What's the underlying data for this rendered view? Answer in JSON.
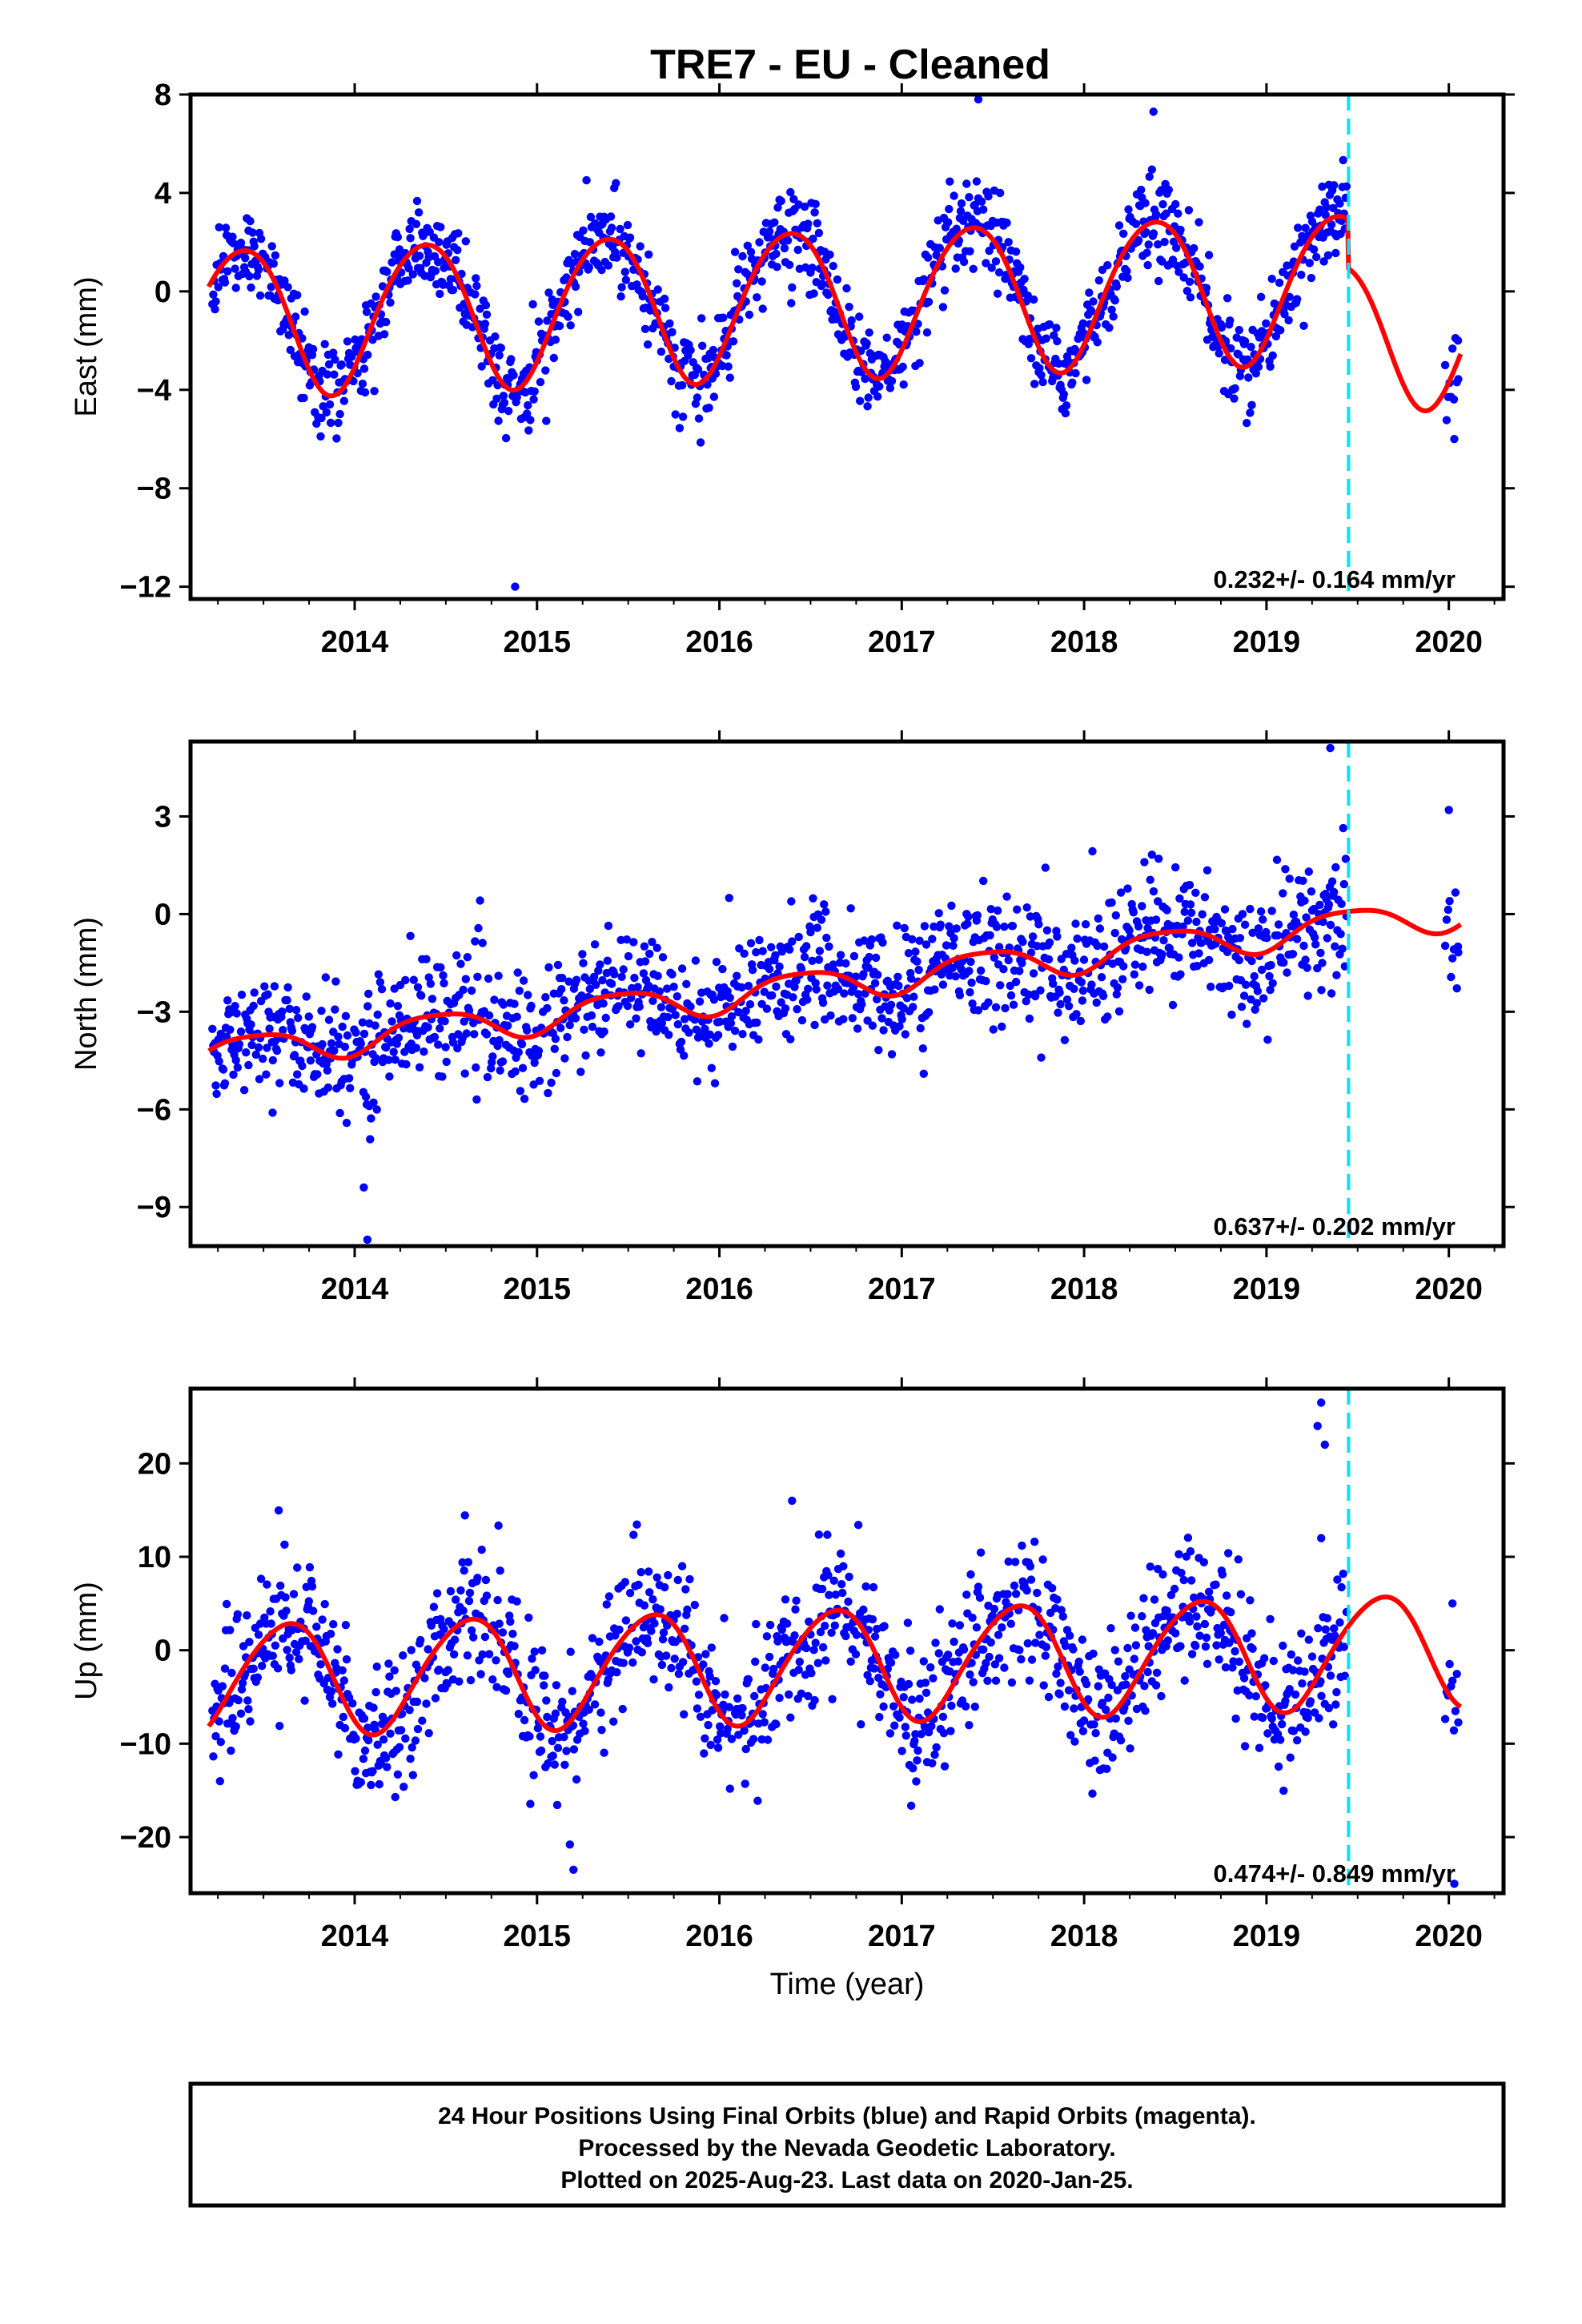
{
  "title": "TRE7  - EU - Cleaned",
  "colors": {
    "final_orbits": "#0000ff",
    "model_fit": "#ff0000",
    "data_end_marker": "#00e5ff",
    "frame": "#000000"
  },
  "chart_data": [
    {
      "type": "scatter",
      "panel": "east",
      "ylabel": "East (mm)",
      "xlabel": "",
      "xlim": [
        2013.1,
        2020.3
      ],
      "ylim": [
        -12.5,
        8
      ],
      "xticks": [
        2014,
        2015,
        2016,
        2017,
        2018,
        2019,
        2020
      ],
      "xtick_labels": [
        "2014",
        "2015",
        "2016",
        "2017",
        "2018",
        "2019",
        "2020"
      ],
      "yticks": [
        -12,
        -8,
        -4,
        0,
        4,
        8
      ],
      "ytick_labels": [
        "−12",
        "−8",
        "−4",
        "0",
        "4",
        "8"
      ],
      "rate_text": "0.232+/- 0.164 mm/yr",
      "data_end_marker_x": 2019.45,
      "model": {
        "trend_mm_per_yr": 0.232,
        "offset_mm": -0.4,
        "annual_amp_mm": 3.0,
        "annual_peak_year_fraction": 0.38,
        "semiannual_amp_mm": 0.25,
        "semiannual_peak_year_fraction": 0.1,
        "break_at": 2019.45,
        "offset_after_break_mm": -2.0
      },
      "scatter": {
        "noise_sd_mm": 0.9,
        "gap_start": 2019.45,
        "gap_end": 2019.98,
        "outliers": [
          [
            2014.88,
            -12.0
          ],
          [
            2017.42,
            7.8
          ],
          [
            2018.38,
            7.3
          ],
          [
            2020.03,
            -6.0
          ],
          [
            2020.05,
            -2.0
          ]
        ]
      }
    },
    {
      "type": "scatter",
      "panel": "north",
      "ylabel": "North (mm)",
      "xlabel": "",
      "xlim": [
        2013.1,
        2020.3
      ],
      "ylim": [
        -10.2,
        5.3
      ],
      "xticks": [
        2014,
        2015,
        2016,
        2017,
        2018,
        2019,
        2020
      ],
      "xtick_labels": [
        "2014",
        "2015",
        "2016",
        "2017",
        "2018",
        "2019",
        "2020"
      ],
      "yticks": [
        -9,
        -6,
        -3,
        0,
        3
      ],
      "ytick_labels": [
        "−9",
        "−6",
        "−3",
        "0",
        "3"
      ],
      "rate_text": "0.637+/- 0.202 mm/yr",
      "data_end_marker_x": 2019.45,
      "model": {
        "trend_mm_per_yr": 0.637,
        "offset_mm": -2.2,
        "annual_amp_mm": 0.5,
        "annual_peak_year_fraction": 0.45,
        "semiannual_amp_mm": 0.1,
        "semiannual_peak_year_fraction": 0.2,
        "break_at": 2019.45,
        "offset_after_break_mm": 0.0
      },
      "scatter": {
        "noise_sd_mm": 0.95,
        "gap_start": 2019.45,
        "gap_end": 2019.98,
        "outliers": [
          [
            2013.55,
            -6.1
          ],
          [
            2014.05,
            -8.4
          ],
          [
            2014.07,
            -10.0
          ],
          [
            2014.08,
            -5.9
          ],
          [
            2017.6,
            -2.5
          ],
          [
            2019.35,
            5.1
          ],
          [
            2020.05,
            -1.0
          ],
          [
            2020.0,
            3.2
          ]
        ]
      }
    },
    {
      "type": "scatter",
      "panel": "up",
      "ylabel": "Up (mm)",
      "xlabel": "Time (year)",
      "xlim": [
        2013.1,
        2020.3
      ],
      "ylim": [
        -26,
        28
      ],
      "xticks": [
        2014,
        2015,
        2016,
        2017,
        2018,
        2019,
        2020
      ],
      "xtick_labels": [
        "2014",
        "2015",
        "2016",
        "2017",
        "2018",
        "2019",
        "2020"
      ],
      "yticks": [
        -20,
        -10,
        0,
        10,
        20
      ],
      "ytick_labels": [
        "−20",
        "−10",
        "0",
        "10",
        "20"
      ],
      "rate_text": "0.474+/- 0.849 mm/yr",
      "data_end_marker_x": 2019.45,
      "model": {
        "trend_mm_per_yr": 0.474,
        "offset_mm": -1.5,
        "annual_amp_mm": 6.0,
        "annual_peak_year_fraction": 0.62,
        "semiannual_amp_mm": 0.6,
        "semiannual_peak_year_fraction": 0.3,
        "break_at": 2019.45,
        "offset_after_break_mm": 0.0
      },
      "scatter": {
        "noise_sd_mm": 3.8,
        "gap_start": 2019.45,
        "gap_end": 2019.98,
        "outliers": [
          [
            2015.2,
            -23.5
          ],
          [
            2015.18,
            -20.8
          ],
          [
            2019.3,
            26.5
          ],
          [
            2019.28,
            24.0
          ],
          [
            2019.32,
            22.0
          ],
          [
            2019.3,
            12.0
          ],
          [
            2020.03,
            -25.0
          ],
          [
            2020.02,
            5.0
          ]
        ]
      }
    }
  ],
  "footer": {
    "line1": "24 Hour Positions Using Final Orbits (blue) and Rapid Orbits (magenta).",
    "line2": "Processed by the Nevada Geodetic Laboratory.",
    "line3": "Plotted on 2025-Aug-23. Last data on 2020-Jan-25."
  }
}
